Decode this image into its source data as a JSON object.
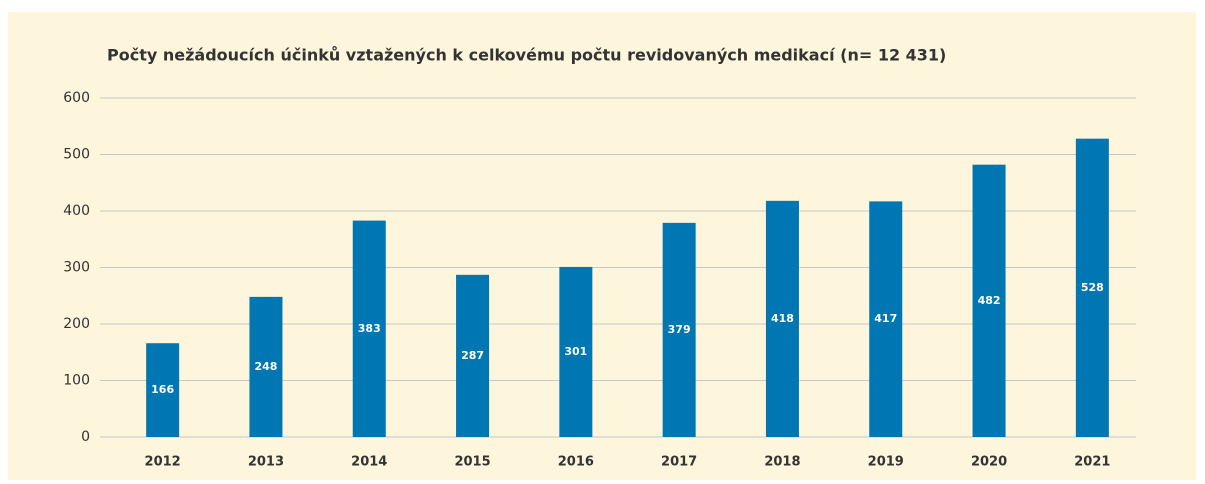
{
  "chart_data": {
    "type": "bar",
    "title": "Počty nežádoucích účinků vztažených k celkovému počtu revidovaných medikací (n= 12 431)",
    "categories": [
      "2012",
      "2013",
      "2014",
      "2015",
      "2016",
      "2017",
      "2018",
      "2019",
      "2020",
      "2021"
    ],
    "values": [
      166,
      248,
      383,
      287,
      301,
      379,
      418,
      417,
      482,
      528
    ],
    "color": "#0077b3",
    "ylim": [
      0,
      600
    ],
    "yticks": [
      0,
      100,
      200,
      300,
      400,
      500,
      600
    ],
    "grid": true
  }
}
